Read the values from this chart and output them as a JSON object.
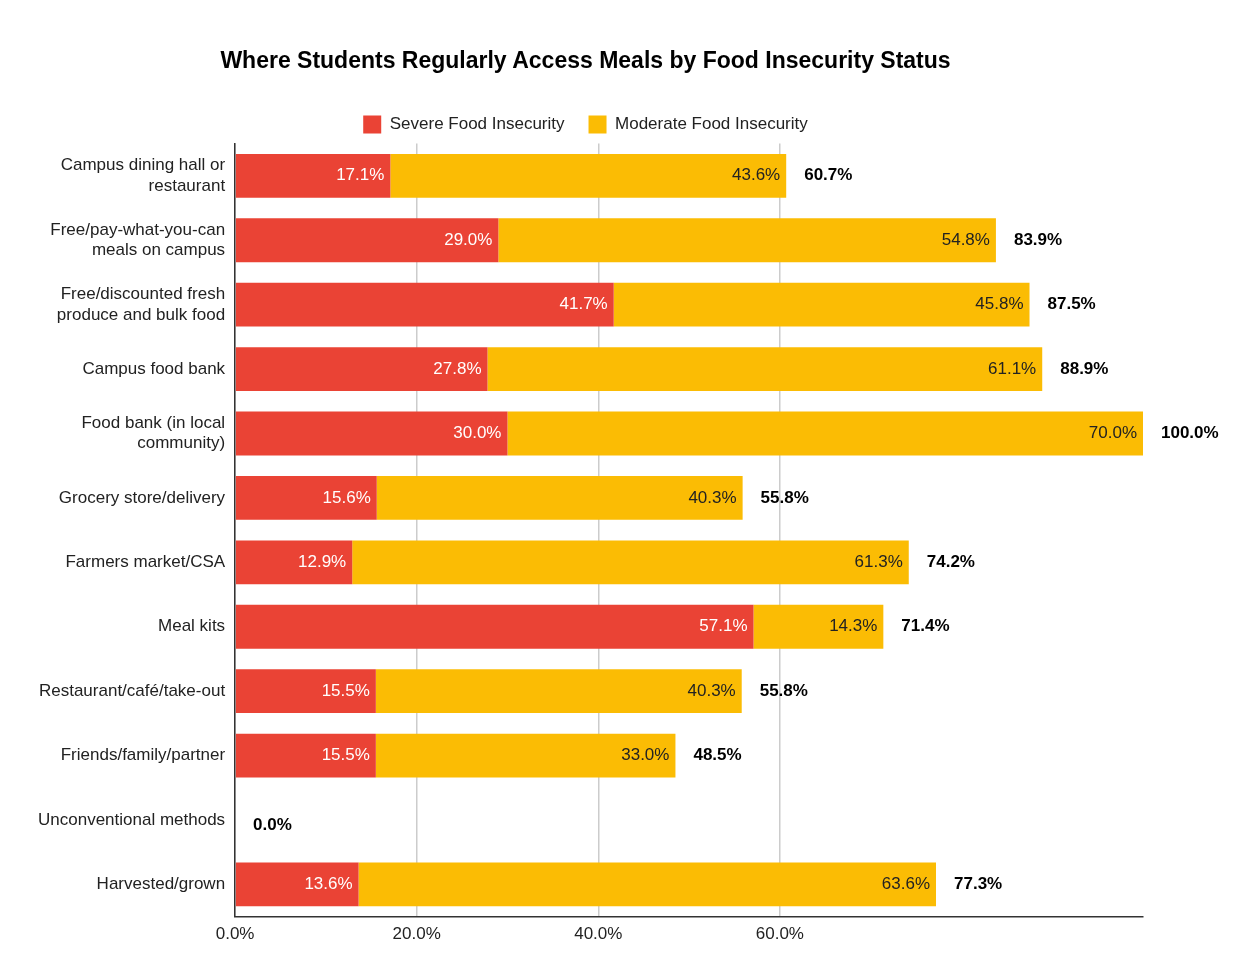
{
  "chart_data": {
    "type": "bar",
    "orientation": "horizontal",
    "stacked": true,
    "title": "Where Students Regularly Access Meals by Food Insecurity Status",
    "categories": [
      "Campus dining hall or restaurant",
      "Free/pay-what-you-can meals on campus",
      "Free/discounted fresh produce and bulk food",
      "Campus food bank",
      "Food bank (in local community)",
      "Grocery store/delivery",
      "Farmers market/CSA",
      "Meal kits",
      "Restaurant/café/take-out",
      "Friends/family/partner",
      "Unconventional methods",
      "Harvested/grown"
    ],
    "series": [
      {
        "name": "Severe Food Insecurity",
        "color": "#ea4335",
        "values": [
          17.1,
          29.0,
          41.7,
          27.8,
          30.0,
          15.6,
          12.9,
          57.1,
          15.5,
          15.5,
          0,
          13.6
        ],
        "value_labels": [
          "17.1%",
          "29.0%",
          "41.7%",
          "27.8%",
          "30.0%",
          "15.6%",
          "12.9%",
          "57.1%",
          "15.5%",
          "15.5%",
          null,
          "13.6%"
        ]
      },
      {
        "name": "Moderate Food Insecurity",
        "color": "#fbbc04",
        "values": [
          43.6,
          54.8,
          45.8,
          61.1,
          70.0,
          40.3,
          61.3,
          14.3,
          40.3,
          33.0,
          0,
          63.6
        ],
        "value_labels": [
          "43.6%",
          "54.8%",
          "45.8%",
          "61.1%",
          "70.0%",
          "40.3%",
          "61.3%",
          "14.3%",
          "40.3%",
          "33.0%",
          null,
          "63.6%"
        ]
      }
    ],
    "totals": [
      "60.7%",
      "83.9%",
      "87.5%",
      "88.9%",
      "100.0%",
      "55.8%",
      "74.2%",
      "71.4%",
      "55.8%",
      "48.5%",
      "0.0%",
      "77.3%"
    ],
    "xlim": [
      0,
      100
    ],
    "xticks": [
      {
        "value": 0,
        "label": "0.0%"
      },
      {
        "value": 20,
        "label": "20.0%"
      },
      {
        "value": 40,
        "label": "40.0%"
      },
      {
        "value": 60,
        "label": "60.0%"
      }
    ],
    "grid": "x",
    "legend": "top"
  }
}
